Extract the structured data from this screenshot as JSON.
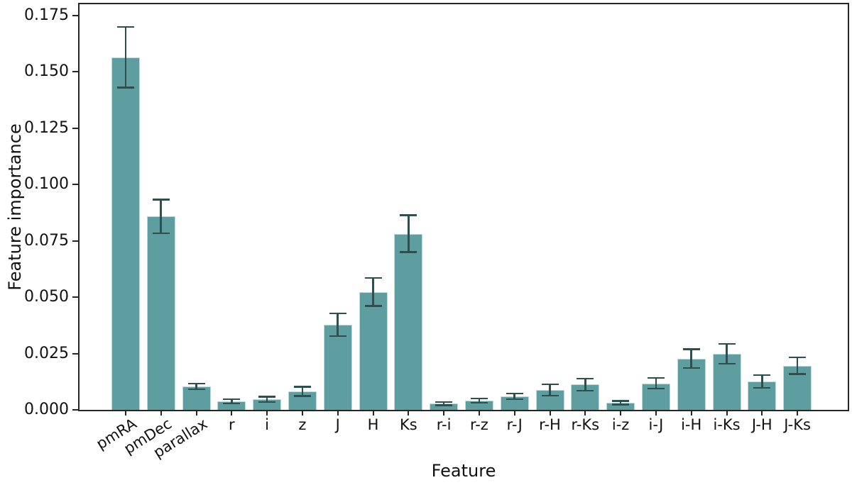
{
  "chart_data": {
    "type": "bar",
    "title": "",
    "xlabel": "Feature",
    "ylabel": "Feature importance",
    "ylim": [
      0,
      0.18
    ],
    "grid": false,
    "legend_position": "none",
    "ytick_labels": [
      "0.000",
      "0.025",
      "0.050",
      "0.075",
      "0.100",
      "0.125",
      "0.150",
      "0.175"
    ],
    "categories": [
      "pmRA",
      "pmDec",
      "parallax",
      "r",
      "i",
      "z",
      "J",
      "H",
      "Ks",
      "r-i",
      "r-z",
      "r-J",
      "r-H",
      "r-Ks",
      "i-z",
      "i-J",
      "i-H",
      "i-Ks",
      "J-H",
      "J-Ks"
    ],
    "values": [
      0.1565,
      0.0858,
      0.0104,
      0.0038,
      0.0047,
      0.0082,
      0.0378,
      0.0523,
      0.0782,
      0.0028,
      0.0041,
      0.006,
      0.0088,
      0.0112,
      0.0032,
      0.0118,
      0.0227,
      0.0249,
      0.0126,
      0.0196
    ],
    "errors": [
      0.0135,
      0.0075,
      0.0013,
      0.0009,
      0.0012,
      0.002,
      0.005,
      0.0062,
      0.0082,
      0.0007,
      0.001,
      0.0013,
      0.0025,
      0.0027,
      0.0008,
      0.0024,
      0.0042,
      0.0044,
      0.0028,
      0.0037
    ],
    "rotated_tick_labels": [
      "pmRA",
      "pmDec",
      "parallax"
    ],
    "colors": {
      "bar_fill": "#5f9ea0",
      "bar_edge": "#bedcdd",
      "error_bar": "#2f4f4f",
      "axis": "#262626",
      "text": "#111111",
      "background": "#ffffff"
    }
  }
}
